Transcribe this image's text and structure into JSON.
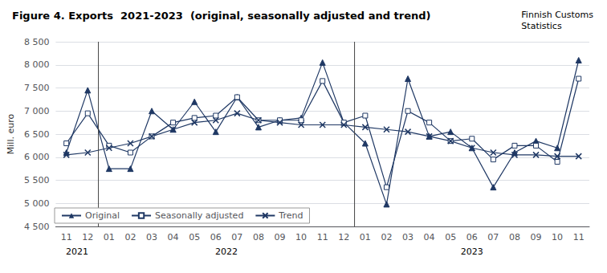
{
  "chart_data": {
    "type": "line",
    "title": "Figure 4. Exports  2021-2023  (original, seasonally adjusted and trend)",
    "subtitle": "Finnish Customs\nStatistics",
    "ylabel": "Mill. euro",
    "categories": [
      "11",
      "12",
      "01",
      "02",
      "03",
      "04",
      "05",
      "06",
      "07",
      "08",
      "09",
      "10",
      "11",
      "12",
      "01",
      "02",
      "03",
      "04",
      "05",
      "06",
      "07",
      "08",
      "09",
      "10",
      "11"
    ],
    "series": [
      {
        "name": "Original",
        "color": "#1F3864",
        "marker": "triangle",
        "values": [
          6100,
          7450,
          5750,
          5750,
          7000,
          6600,
          7200,
          6550,
          7300,
          6650,
          6800,
          6850,
          8050,
          6750,
          6300,
          4980,
          7700,
          6450,
          6550,
          6200,
          5350,
          6100,
          6350,
          6200,
          8100
        ]
      },
      {
        "name": "Seasonally adjusted",
        "color": "#1F3864",
        "marker": "open_square",
        "values": [
          6300,
          6950,
          6250,
          6100,
          6450,
          6750,
          6850,
          6900,
          7300,
          6800,
          6800,
          6800,
          7650,
          6750,
          6900,
          5350,
          7000,
          6750,
          6350,
          6400,
          5950,
          6250,
          6250,
          5900,
          7700
        ]
      },
      {
        "name": "Trend",
        "color": "#1F3864",
        "marker": "x",
        "values": [
          6050,
          6100,
          6200,
          6300,
          6450,
          6600,
          6750,
          6800,
          6950,
          6800,
          6750,
          6700,
          6700,
          6700,
          6650,
          6600,
          6550,
          6450,
          6350,
          6200,
          6100,
          6050,
          6050,
          6020,
          6020
        ]
      }
    ],
    "ylim": [
      4500,
      8500
    ],
    "yticks": [
      {
        "value": 4500,
        "label": "4 500"
      },
      {
        "value": 5000,
        "label": "5 000"
      },
      {
        "value": 5500,
        "label": "5 500"
      },
      {
        "value": 6000,
        "label": "6 000"
      },
      {
        "value": 6500,
        "label": "6 500"
      },
      {
        "value": 7000,
        "label": "7 000"
      },
      {
        "value": 7500,
        "label": "7 500"
      },
      {
        "value": 8000,
        "label": "8 000"
      },
      {
        "value": 8500,
        "label": "8 500"
      }
    ],
    "annotations": [
      {
        "text": "2021",
        "x": 0.5
      },
      {
        "text": "2022",
        "x": 7.5
      },
      {
        "text": "2023",
        "x": 19.0
      }
    ],
    "dividers": [
      1.5,
      13.5
    ],
    "grid": true,
    "legend": "lower left"
  }
}
